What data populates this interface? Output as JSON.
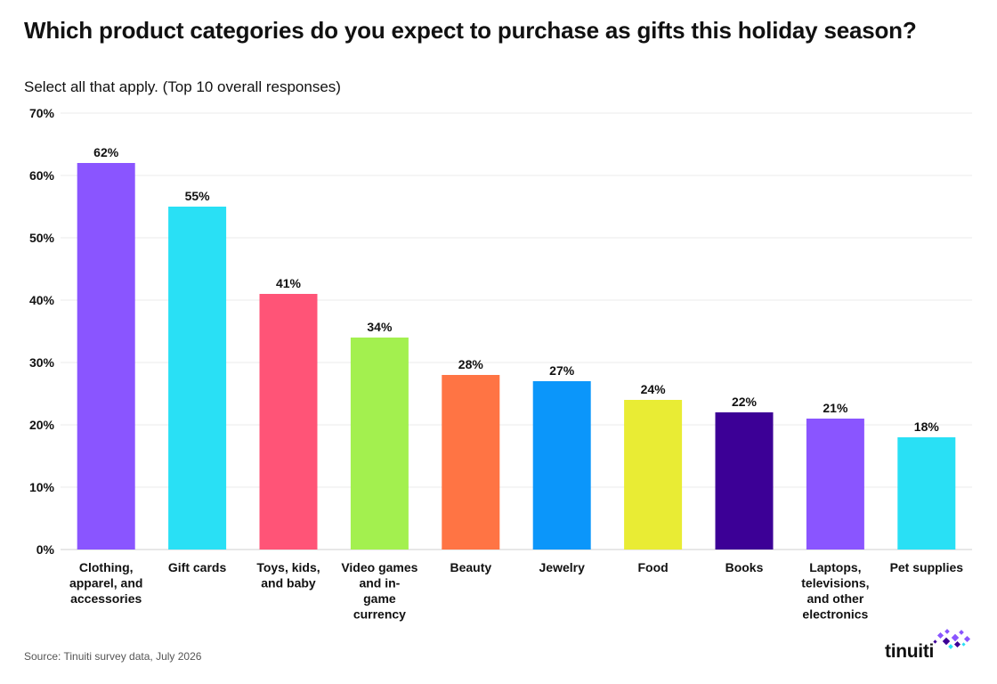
{
  "title": "Which product categories do you expect to purchase as gifts this holiday season?",
  "subtitle": "Select all that apply. (Top 10 overall responses)",
  "source": "Source: Tinuiti survey data, July 2026",
  "brand": "tinuiti",
  "chart_data": {
    "type": "bar",
    "title": "Which product categories do you expect to purchase as gifts this holiday season?",
    "subtitle": "Select all that apply. (Top 10 overall responses)",
    "xlabel": "",
    "ylabel": "",
    "ylim": [
      0,
      70
    ],
    "yticks": [
      "0%",
      "10%",
      "20%",
      "30%",
      "40%",
      "50%",
      "60%",
      "70%"
    ],
    "grid": true,
    "categories": [
      [
        "Clothing,",
        "apparel, and",
        "accessories"
      ],
      [
        "Gift cards"
      ],
      [
        "Toys, kids,",
        "and baby"
      ],
      [
        "Video games",
        "and in-",
        "game",
        "currency"
      ],
      [
        "Beauty"
      ],
      [
        "Jewelry"
      ],
      [
        "Food"
      ],
      [
        "Books"
      ],
      [
        "Laptops,",
        "televisions,",
        "and other",
        "electronics"
      ],
      [
        "Pet supplies"
      ]
    ],
    "values": [
      62,
      55,
      41,
      34,
      28,
      27,
      24,
      22,
      21,
      18
    ],
    "data_labels": [
      "62%",
      "55%",
      "41%",
      "34%",
      "28%",
      "27%",
      "24%",
      "22%",
      "21%",
      "18%"
    ],
    "colors": [
      "#8a55ff",
      "#29e0f5",
      "#ff5477",
      "#a3f04f",
      "#ff7444",
      "#0b96fa",
      "#e9ec34",
      "#3c0096",
      "#8a55ff",
      "#29e0f5"
    ]
  }
}
